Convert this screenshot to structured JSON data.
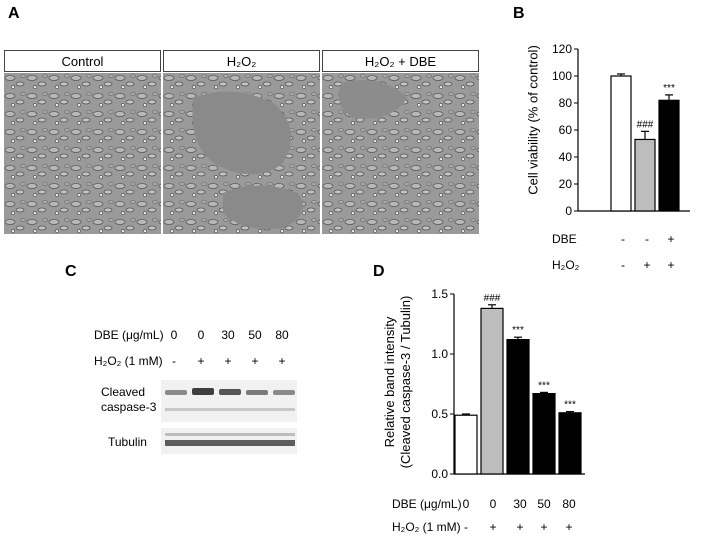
{
  "panels": {
    "A": "A",
    "B": "B",
    "C": "C",
    "D": "D"
  },
  "micrographs": [
    {
      "label": "Control"
    },
    {
      "label": "H₂O₂"
    },
    {
      "label": "H₂O₂ + DBE"
    }
  ],
  "panel_b": {
    "ylabel": "Cell viability (% of control)",
    "row_labels": [
      "DBE",
      "H₂O₂"
    ],
    "dbe_signs": [
      "-",
      "-",
      "+"
    ],
    "h2o2_signs": [
      "-",
      "+",
      "+"
    ]
  },
  "panel_c": {
    "dbe_label": "DBE (μg/mL)",
    "h2o2_label": "H₂O₂ (1 mM)",
    "doses": [
      "0",
      "0",
      "30",
      "50",
      "80"
    ],
    "h2o2_signs": [
      "-",
      "+",
      "+",
      "+",
      "+"
    ],
    "band_labels": {
      "caspase": "Cleaved\ncaspase-3",
      "tubulin": "Tubulin"
    }
  },
  "panel_d": {
    "ylabel_line1": "Relative band intensity",
    "ylabel_line2": "(Cleaved caspase-3 / Tubulin)",
    "dbe_label": "DBE (μg/mL)",
    "h2o2_label": "H₂O₂ (1 mM)",
    "doses": [
      "0",
      "0",
      "30",
      "50",
      "80"
    ],
    "h2o2_signs": [
      "-",
      "+",
      "+",
      "+",
      "+"
    ]
  },
  "chart_data": [
    {
      "type": "bar",
      "panel": "B",
      "categories": [
        "Control",
        "H₂O₂",
        "H₂O₂ + DBE"
      ],
      "values": [
        100,
        53,
        82
      ],
      "errors": [
        1.5,
        6,
        4
      ],
      "annotations": [
        "",
        "###",
        "***"
      ],
      "bar_colors": [
        "#ffffff",
        "#bdbdbd",
        "#000000"
      ],
      "ylabel": "Cell viability (% of control)",
      "ylim": [
        0,
        120
      ],
      "yticks": [
        0,
        20,
        40,
        60,
        80,
        100,
        120
      ]
    },
    {
      "type": "bar",
      "panel": "D",
      "categories": [
        "0 / -",
        "0 / +",
        "30 / +",
        "50 / +",
        "80 / +"
      ],
      "values": [
        0.49,
        1.38,
        1.12,
        0.67,
        0.51
      ],
      "errors": [
        0.01,
        0.03,
        0.02,
        0.01,
        0.01
      ],
      "annotations": [
        "",
        "###",
        "***",
        "***",
        "***"
      ],
      "bar_colors": [
        "#ffffff",
        "#bdbdbd",
        "#000000",
        "#000000",
        "#000000"
      ],
      "ylabel": "Relative band intensity (Cleaved caspase-3 / Tubulin)",
      "ylim": [
        0,
        1.5
      ],
      "yticks": [
        "0.0",
        "0.5",
        "1.0",
        "1.5"
      ]
    }
  ]
}
